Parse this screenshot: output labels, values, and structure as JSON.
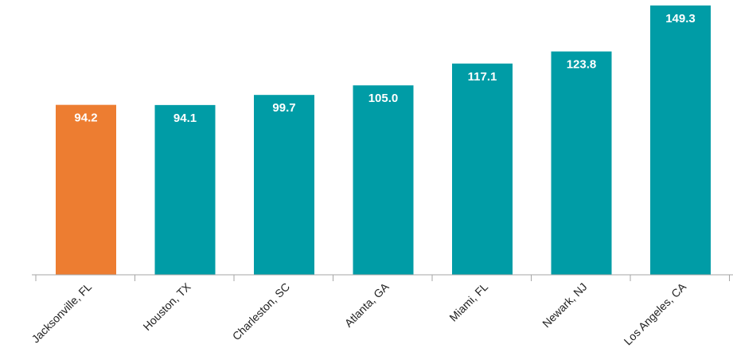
{
  "chart_data": {
    "type": "bar",
    "categories": [
      "Jacksonville, FL",
      "Houston, TX",
      "Charleston, SC",
      "Atlanta, GA",
      "Miami, FL",
      "Newark, NJ",
      "Los Angeles, CA"
    ],
    "values": [
      94.2,
      94.1,
      99.7,
      105.0,
      117.1,
      123.8,
      149.3
    ],
    "value_labels": [
      "94.2",
      "94.1",
      "99.7",
      "105.0",
      "117.1",
      "123.8",
      "149.3"
    ],
    "highlight_index": 0,
    "colors": {
      "highlight": "#ED7D31",
      "default": "#009CA6"
    },
    "ylim": [
      0,
      151
    ],
    "grid": false,
    "legend": "none",
    "title": "",
    "xlabel": "",
    "ylabel": ""
  }
}
